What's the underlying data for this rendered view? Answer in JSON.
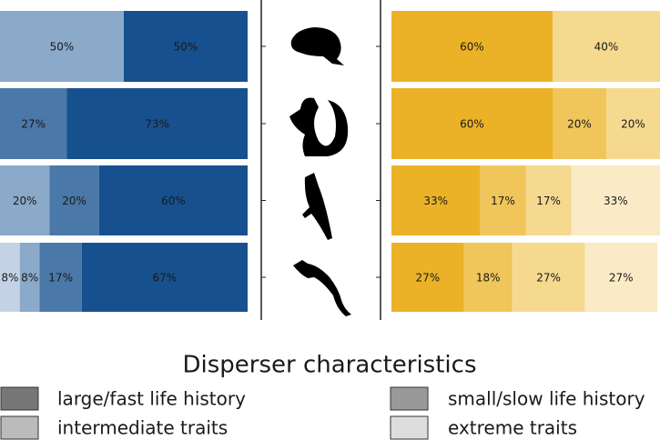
{
  "chart_data": [
    {
      "type": "bar",
      "orientation": "horizontal",
      "stacked": true,
      "xlim": [
        0,
        100
      ],
      "rows": [
        {
          "values": [
            50,
            50
          ],
          "value_labels": [
            "50%",
            "50%"
          ],
          "colors": [
            "#8ba9c9",
            "#17508e"
          ]
        },
        {
          "values": [
            27,
            73
          ],
          "value_labels": [
            "27%",
            "73%"
          ],
          "colors": [
            "#4a78a8",
            "#17508e"
          ]
        },
        {
          "values": [
            20,
            20,
            60
          ],
          "value_labels": [
            "20%",
            "20%",
            "60%"
          ],
          "colors": [
            "#8ba9c9",
            "#4a78a8",
            "#17508e"
          ]
        },
        {
          "values": [
            8,
            8,
            17,
            67
          ],
          "value_labels": [
            "8%",
            "8%",
            "17%",
            "67%"
          ],
          "colors": [
            "#c3d3e5",
            "#8ba9c9",
            "#4a78a8",
            "#17508e"
          ]
        }
      ]
    },
    {
      "type": "bar",
      "orientation": "horizontal",
      "stacked": true,
      "xlim": [
        0,
        100
      ],
      "rows": [
        {
          "values": [
            60,
            40
          ],
          "value_labels": [
            "60%",
            "40%"
          ],
          "colors": [
            "#ebb228",
            "#f5d98f"
          ]
        },
        {
          "values": [
            60,
            20,
            20
          ],
          "value_labels": [
            "60%",
            "20%",
            "20%"
          ],
          "colors": [
            "#ebb228",
            "#f0c55a",
            "#f5d98f"
          ]
        },
        {
          "values": [
            33,
            17,
            17,
            33
          ],
          "value_labels": [
            "33%",
            "17%",
            "17%",
            "33%"
          ],
          "colors": [
            "#ebb228",
            "#f0c55a",
            "#f5d98f",
            "#faebc6"
          ]
        },
        {
          "values": [
            27,
            18,
            27,
            27
          ],
          "value_labels": [
            "27%",
            "18%",
            "27%",
            "27%"
          ],
          "colors": [
            "#ebb228",
            "#f0c55a",
            "#f5d98f",
            "#faebc6"
          ]
        }
      ]
    }
  ],
  "legend": {
    "title": "Disperser characteristics",
    "items": [
      {
        "label": "large/fast life history",
        "color": "#777777"
      },
      {
        "label": "intermediate traits",
        "color": "#bbbbbb"
      },
      {
        "label": "small/slow life history",
        "color": "#999999"
      },
      {
        "label": "extreme traits",
        "color": "#dddddd"
      }
    ]
  }
}
